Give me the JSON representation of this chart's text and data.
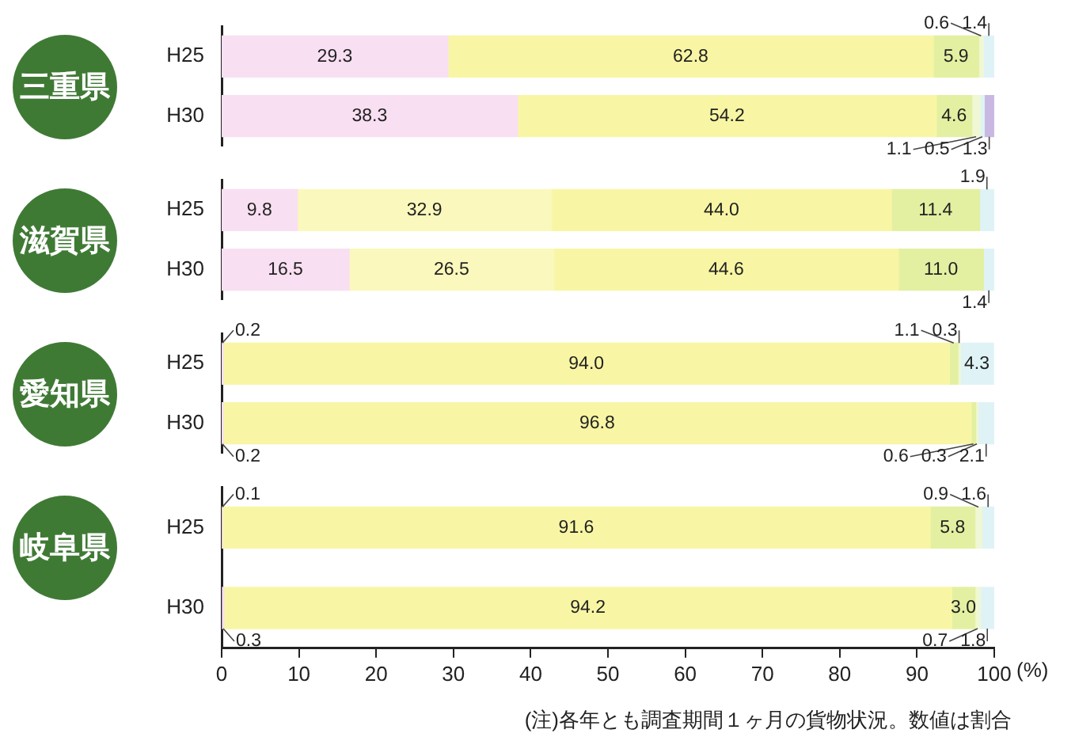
{
  "chart_data": [
    {
      "type": "bar",
      "orientation": "horizontal",
      "stacked": true,
      "title": "三重県",
      "categories": [
        "H25",
        "H30"
      ],
      "xlim": [
        0,
        100
      ],
      "tick_labels": "y",
      "series": [
        {
          "color": "#f9dff2",
          "values": [
            29.3,
            38.3
          ],
          "value_labels": [
            "29.3",
            "38.3"
          ]
        },
        {
          "color": "#f8f6a4",
          "values": [
            62.8,
            54.2
          ],
          "value_labels": [
            "62.8",
            "54.2"
          ]
        },
        {
          "color": "#e3f0a2",
          "values": [
            5.9,
            4.6
          ],
          "value_labels": [
            "5.9",
            "4.6"
          ]
        },
        {
          "color": "#f0f7d4",
          "values": [
            0.6,
            1.1
          ],
          "value_labels": [
            "0.6",
            "1.1"
          ]
        },
        {
          "color": "#dff3f6",
          "values": [
            1.4,
            0.5
          ],
          "value_labels": [
            "1.4",
            "0.5"
          ]
        },
        {
          "color": "#c9b9e2",
          "values": [
            null,
            1.3
          ],
          "value_labels": [
            null,
            "1.3"
          ]
        }
      ]
    },
    {
      "type": "bar",
      "orientation": "horizontal",
      "stacked": true,
      "title": "滋賀県",
      "categories": [
        "H25",
        "H30"
      ],
      "xlim": [
        0,
        100
      ],
      "tick_labels": "y",
      "series": [
        {
          "color": "#f9dff2",
          "values": [
            9.8,
            16.5
          ],
          "value_labels": [
            "9.8",
            "16.5"
          ]
        },
        {
          "color": "#faf8bc",
          "values": [
            32.9,
            26.5
          ],
          "value_labels": [
            "32.9",
            "26.5"
          ]
        },
        {
          "color": "#f8f6a4",
          "values": [
            44.0,
            44.6
          ],
          "value_labels": [
            "44.0",
            "44.6"
          ]
        },
        {
          "color": "#e3f0a2",
          "values": [
            11.4,
            11.0
          ],
          "value_labels": [
            "11.4",
            "11.0"
          ]
        },
        {
          "color": "#dff3f6",
          "values": [
            1.9,
            1.4
          ],
          "value_labels": [
            "1.9",
            "1.4"
          ]
        }
      ]
    },
    {
      "type": "bar",
      "orientation": "horizontal",
      "stacked": true,
      "title": "愛知県",
      "categories": [
        "H25",
        "H30"
      ],
      "xlim": [
        0,
        100
      ],
      "tick_labels": "y",
      "series": [
        {
          "color": "#f9dff2",
          "values": [
            0.2,
            0.2
          ],
          "value_labels": [
            "0.2",
            "0.2"
          ]
        },
        {
          "color": "#f8f6a4",
          "values": [
            94.0,
            96.8
          ],
          "value_labels": [
            "94.0",
            "96.8"
          ]
        },
        {
          "color": "#e3f0a2",
          "values": [
            1.1,
            0.6
          ],
          "value_labels": [
            "1.1",
            "0.6"
          ]
        },
        {
          "color": "#f0f7d4",
          "values": [
            0.3,
            0.3
          ],
          "value_labels": [
            "0.3",
            "0.3"
          ]
        },
        {
          "color": "#dff3f6",
          "values": [
            4.3,
            2.1
          ],
          "value_labels": [
            "4.3",
            "2.1"
          ]
        }
      ]
    },
    {
      "type": "bar",
      "orientation": "horizontal",
      "stacked": true,
      "title": "岐阜県",
      "categories": [
        "H25",
        "H30"
      ],
      "xlim": [
        0,
        100
      ],
      "xticks": [
        0,
        10,
        20,
        30,
        40,
        50,
        60,
        70,
        80,
        90,
        100
      ],
      "xlabel": "(%)",
      "annotations": [
        "(注)各年とも調査期間１ヶ月の貨物状況。数値は割合"
      ],
      "series": [
        {
          "color": "#f9dff2",
          "values": [
            0.1,
            0.3
          ],
          "value_labels": [
            "0.1",
            "0.3"
          ]
        },
        {
          "color": "#f8f6a4",
          "values": [
            91.6,
            94.2
          ],
          "value_labels": [
            "91.6",
            "94.2"
          ]
        },
        {
          "color": "#e3f0a2",
          "values": [
            5.8,
            3.0
          ],
          "value_labels": [
            "5.8",
            "3.0"
          ]
        },
        {
          "color": "#f0f7d4",
          "values": [
            0.9,
            0.7
          ],
          "value_labels": [
            "0.9",
            "0.7"
          ]
        },
        {
          "color": "#dff3f6",
          "values": [
            1.6,
            1.8
          ],
          "value_labels": [
            "1.6",
            "1.8"
          ]
        }
      ]
    }
  ]
}
